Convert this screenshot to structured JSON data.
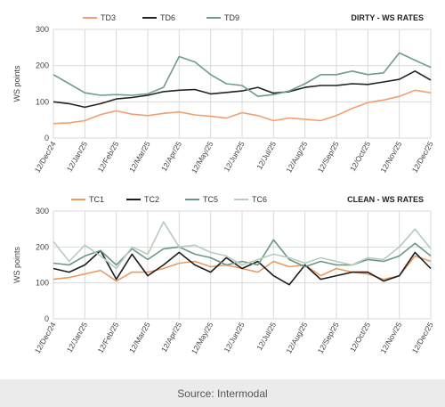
{
  "colors": {
    "TD3": "#f0a070",
    "TD6": "#222222",
    "TD9": "#6f9d8a",
    "TC1": "#e99a63",
    "TC2": "#1d1d1d",
    "TC5": "#6a9688",
    "TC6": "#b7ccbb",
    "grid": "#d9d9d9",
    "axis": "#555555",
    "footer_bg": "#ebebeb"
  },
  "source": "Source: Intermodal",
  "chart_data": [
    {
      "type": "line",
      "title": "DIRTY - WS RATES",
      "ylabel": "WS points",
      "ylim": [
        0,
        300
      ],
      "yticks": [
        0,
        100,
        200,
        300
      ],
      "legend_position": "top-left",
      "xticks": [
        "12/Dec/24",
        "12/Jan/25",
        "12/Feb/25",
        "12/Mar/25",
        "12/Apr/25",
        "12/May/25",
        "12/Jun/25",
        "12/Jul/25",
        "12/Aug/25",
        "12/Sep/25",
        "12/Oct/25",
        "12/Nov/25",
        "12/Dec/25"
      ],
      "x": [
        "12/Dec/24",
        "26/Dec/24",
        "12/Jan/25",
        "26/Jan/25",
        "12/Feb/25",
        "26/Feb/25",
        "12/Mar/25",
        "26/Mar/25",
        "12/Apr/25",
        "26/Apr/25",
        "12/May/25",
        "26/May/25",
        "12/Jun/25",
        "26/Jun/25",
        "12/Jul/25",
        "26/Jul/25",
        "12/Aug/25",
        "26/Aug/25",
        "12/Sep/25",
        "26/Sep/25",
        "12/Oct/25",
        "26/Oct/25",
        "12/Nov/25",
        "26/Nov/25",
        "12/Dec/25"
      ],
      "series": [
        {
          "name": "TD3",
          "values": [
            40,
            42,
            48,
            65,
            75,
            66,
            62,
            68,
            72,
            64,
            60,
            55,
            70,
            62,
            48,
            55,
            52,
            48,
            62,
            82,
            98,
            105,
            115,
            132,
            125
          ]
        },
        {
          "name": "TD6",
          "values": [
            100,
            95,
            85,
            95,
            108,
            112,
            118,
            128,
            132,
            134,
            122,
            126,
            130,
            140,
            124,
            128,
            140,
            145,
            145,
            150,
            148,
            155,
            162,
            185,
            160
          ]
        },
        {
          "name": "TD9",
          "values": [
            175,
            150,
            125,
            118,
            120,
            118,
            122,
            140,
            225,
            210,
            175,
            150,
            145,
            115,
            120,
            130,
            150,
            175,
            175,
            185,
            175,
            180,
            235,
            215,
            195
          ]
        }
      ]
    },
    {
      "type": "line",
      "title": "CLEAN - WS RATES",
      "ylabel": "WS points",
      "ylim": [
        0,
        300
      ],
      "yticks": [
        0,
        100,
        200,
        300
      ],
      "legend_position": "top-left",
      "xticks": [
        "12/Dec/24",
        "12/Jan/25",
        "12/Feb/25",
        "12/Mar/25",
        "12/Apr/25",
        "12/May/25",
        "12/Jun/25",
        "12/Jul/25",
        "12/Aug/25",
        "12/Sep/25",
        "12/Oct/25",
        "12/Nov/25",
        "12/Dec/25"
      ],
      "x": [
        "12/Dec/24",
        "26/Dec/24",
        "12/Jan/25",
        "26/Jan/25",
        "12/Feb/25",
        "26/Feb/25",
        "12/Mar/25",
        "26/Mar/25",
        "12/Apr/25",
        "26/Apr/25",
        "12/May/25",
        "26/May/25",
        "12/Jun/25",
        "26/Jun/25",
        "12/Jul/25",
        "26/Jul/25",
        "12/Aug/25",
        "26/Aug/25",
        "12/Sep/25",
        "26/Sep/25",
        "12/Oct/25",
        "26/Oct/25",
        "12/Nov/25",
        "26/Nov/25",
        "12/Dec/25"
      ],
      "series": [
        {
          "name": "TC1",
          "values": [
            110,
            115,
            125,
            135,
            105,
            130,
            130,
            140,
            155,
            160,
            145,
            150,
            140,
            130,
            160,
            145,
            150,
            120,
            140,
            130,
            125,
            110,
            120,
            175,
            160
          ]
        },
        {
          "name": "TC2",
          "values": [
            140,
            130,
            150,
            190,
            110,
            180,
            120,
            150,
            185,
            150,
            130,
            170,
            140,
            160,
            120,
            95,
            150,
            110,
            120,
            130,
            130,
            105,
            120,
            185,
            140
          ]
        },
        {
          "name": "TC5",
          "values": [
            155,
            150,
            175,
            190,
            150,
            195,
            165,
            195,
            200,
            180,
            170,
            150,
            160,
            150,
            220,
            165,
            145,
            160,
            150,
            150,
            165,
            160,
            175,
            210,
            175
          ]
        },
        {
          "name": "TC6",
          "values": [
            215,
            160,
            205,
            175,
            140,
            200,
            180,
            270,
            200,
            205,
            185,
            175,
            150,
            165,
            180,
            170,
            155,
            170,
            160,
            150,
            170,
            165,
            200,
            250,
            195
          ]
        }
      ]
    }
  ]
}
